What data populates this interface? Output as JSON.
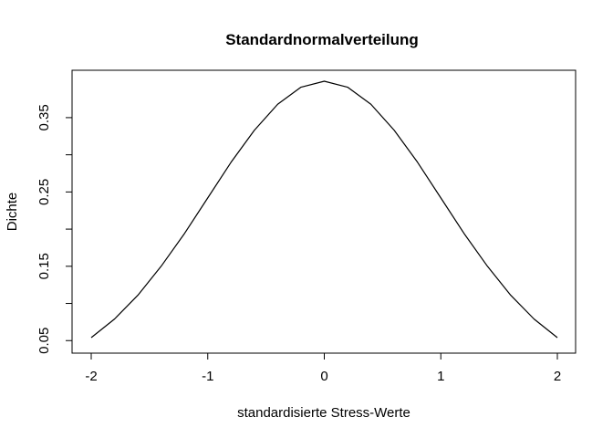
{
  "chart_data": {
    "type": "line",
    "title": "Standardnormalverteilung",
    "xlabel": "standardisierte Stress-Werte",
    "ylabel": "Dichte",
    "xlim": [
      -2,
      2
    ],
    "ylim": [
      0.054,
      0.399
    ],
    "xticks": [
      -2,
      -1,
      0,
      1,
      2
    ],
    "xtick_labels": [
      "-2",
      "-1",
      "0",
      "1",
      "2"
    ],
    "yticks": [
      0.05,
      0.1,
      0.15,
      0.2,
      0.25,
      0.3,
      0.35
    ],
    "ytick_labels": [
      "0.05",
      "",
      "0.15",
      "",
      "0.25",
      "",
      "0.35"
    ],
    "grid": false,
    "line_color": "#000000",
    "series": [
      {
        "x": [
          -2.0,
          -1.8,
          -1.6,
          -1.4,
          -1.2,
          -1.0,
          -0.8,
          -0.6,
          -0.4,
          -0.2,
          0.0,
          0.2,
          0.4,
          0.6,
          0.8,
          1.0,
          1.2,
          1.4,
          1.6,
          1.8,
          2.0
        ],
        "y": [
          0.054,
          0.079,
          0.111,
          0.15,
          0.194,
          0.242,
          0.29,
          0.333,
          0.368,
          0.391,
          0.399,
          0.391,
          0.368,
          0.333,
          0.29,
          0.242,
          0.194,
          0.15,
          0.111,
          0.079,
          0.054
        ]
      }
    ]
  }
}
